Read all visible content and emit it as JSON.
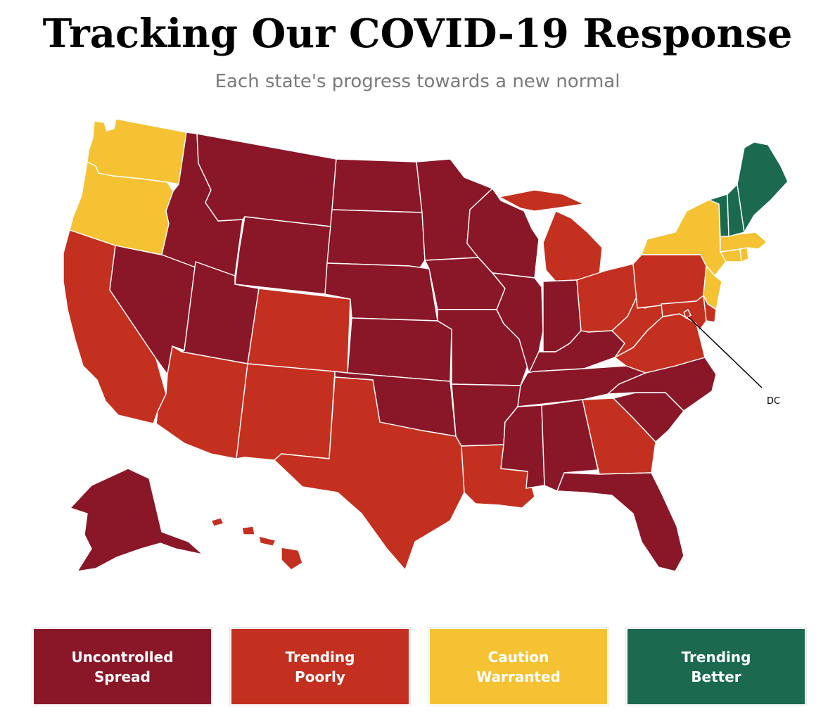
{
  "header": {
    "title": "Tracking Our COVID-19 Response",
    "subtitle": "Each state's progress towards a new normal"
  },
  "colors": {
    "uncontrolled_spread": "#8a1728",
    "trending_poorly": "#c4301f",
    "caution_warranted": "#f5c233",
    "trending_better": "#1b6a4f"
  },
  "map": {
    "dc_label": "DC",
    "states": [
      {
        "abbr": "WA",
        "category": "caution_warranted"
      },
      {
        "abbr": "OR",
        "category": "caution_warranted"
      },
      {
        "abbr": "CA",
        "category": "trending_poorly"
      },
      {
        "abbr": "NV",
        "category": "uncontrolled_spread"
      },
      {
        "abbr": "ID",
        "category": "uncontrolled_spread"
      },
      {
        "abbr": "MT",
        "category": "uncontrolled_spread"
      },
      {
        "abbr": "WY",
        "category": "uncontrolled_spread"
      },
      {
        "abbr": "UT",
        "category": "uncontrolled_spread"
      },
      {
        "abbr": "AZ",
        "category": "trending_poorly"
      },
      {
        "abbr": "CO",
        "category": "trending_poorly"
      },
      {
        "abbr": "NM",
        "category": "trending_poorly"
      },
      {
        "abbr": "ND",
        "category": "uncontrolled_spread"
      },
      {
        "abbr": "SD",
        "category": "uncontrolled_spread"
      },
      {
        "abbr": "NE",
        "category": "uncontrolled_spread"
      },
      {
        "abbr": "KS",
        "category": "uncontrolled_spread"
      },
      {
        "abbr": "OK",
        "category": "uncontrolled_spread"
      },
      {
        "abbr": "TX",
        "category": "trending_poorly"
      },
      {
        "abbr": "MN",
        "category": "uncontrolled_spread"
      },
      {
        "abbr": "IA",
        "category": "uncontrolled_spread"
      },
      {
        "abbr": "MO",
        "category": "uncontrolled_spread"
      },
      {
        "abbr": "AR",
        "category": "uncontrolled_spread"
      },
      {
        "abbr": "LA",
        "category": "trending_poorly"
      },
      {
        "abbr": "WI",
        "category": "uncontrolled_spread"
      },
      {
        "abbr": "IL",
        "category": "uncontrolled_spread"
      },
      {
        "abbr": "MI",
        "category": "trending_poorly"
      },
      {
        "abbr": "IN",
        "category": "uncontrolled_spread"
      },
      {
        "abbr": "OH",
        "category": "trending_poorly"
      },
      {
        "abbr": "KY",
        "category": "uncontrolled_spread"
      },
      {
        "abbr": "TN",
        "category": "uncontrolled_spread"
      },
      {
        "abbr": "MS",
        "category": "uncontrolled_spread"
      },
      {
        "abbr": "AL",
        "category": "uncontrolled_spread"
      },
      {
        "abbr": "GA",
        "category": "trending_poorly"
      },
      {
        "abbr": "FL",
        "category": "uncontrolled_spread"
      },
      {
        "abbr": "SC",
        "category": "uncontrolled_spread"
      },
      {
        "abbr": "NC",
        "category": "uncontrolled_spread"
      },
      {
        "abbr": "VA",
        "category": "trending_poorly"
      },
      {
        "abbr": "WV",
        "category": "trending_poorly"
      },
      {
        "abbr": "PA",
        "category": "trending_poorly"
      },
      {
        "abbr": "NY",
        "category": "caution_warranted"
      },
      {
        "abbr": "NJ",
        "category": "caution_warranted"
      },
      {
        "abbr": "DE",
        "category": "trending_poorly"
      },
      {
        "abbr": "MD",
        "category": "trending_poorly"
      },
      {
        "abbr": "DC",
        "category": "trending_poorly"
      },
      {
        "abbr": "CT",
        "category": "caution_warranted"
      },
      {
        "abbr": "RI",
        "category": "caution_warranted"
      },
      {
        "abbr": "MA",
        "category": "caution_warranted"
      },
      {
        "abbr": "VT",
        "category": "trending_better"
      },
      {
        "abbr": "NH",
        "category": "trending_better"
      },
      {
        "abbr": "ME",
        "category": "trending_better"
      },
      {
        "abbr": "AK",
        "category": "uncontrolled_spread"
      },
      {
        "abbr": "HI",
        "category": "trending_poorly"
      }
    ]
  },
  "legend": [
    {
      "key": "uncontrolled_spread",
      "label": "Uncontrolled\nSpread"
    },
    {
      "key": "trending_poorly",
      "label": "Trending\nPoorly"
    },
    {
      "key": "caution_warranted",
      "label": "Caution\nWarranted"
    },
    {
      "key": "trending_better",
      "label": "Trending\nBetter"
    }
  ]
}
